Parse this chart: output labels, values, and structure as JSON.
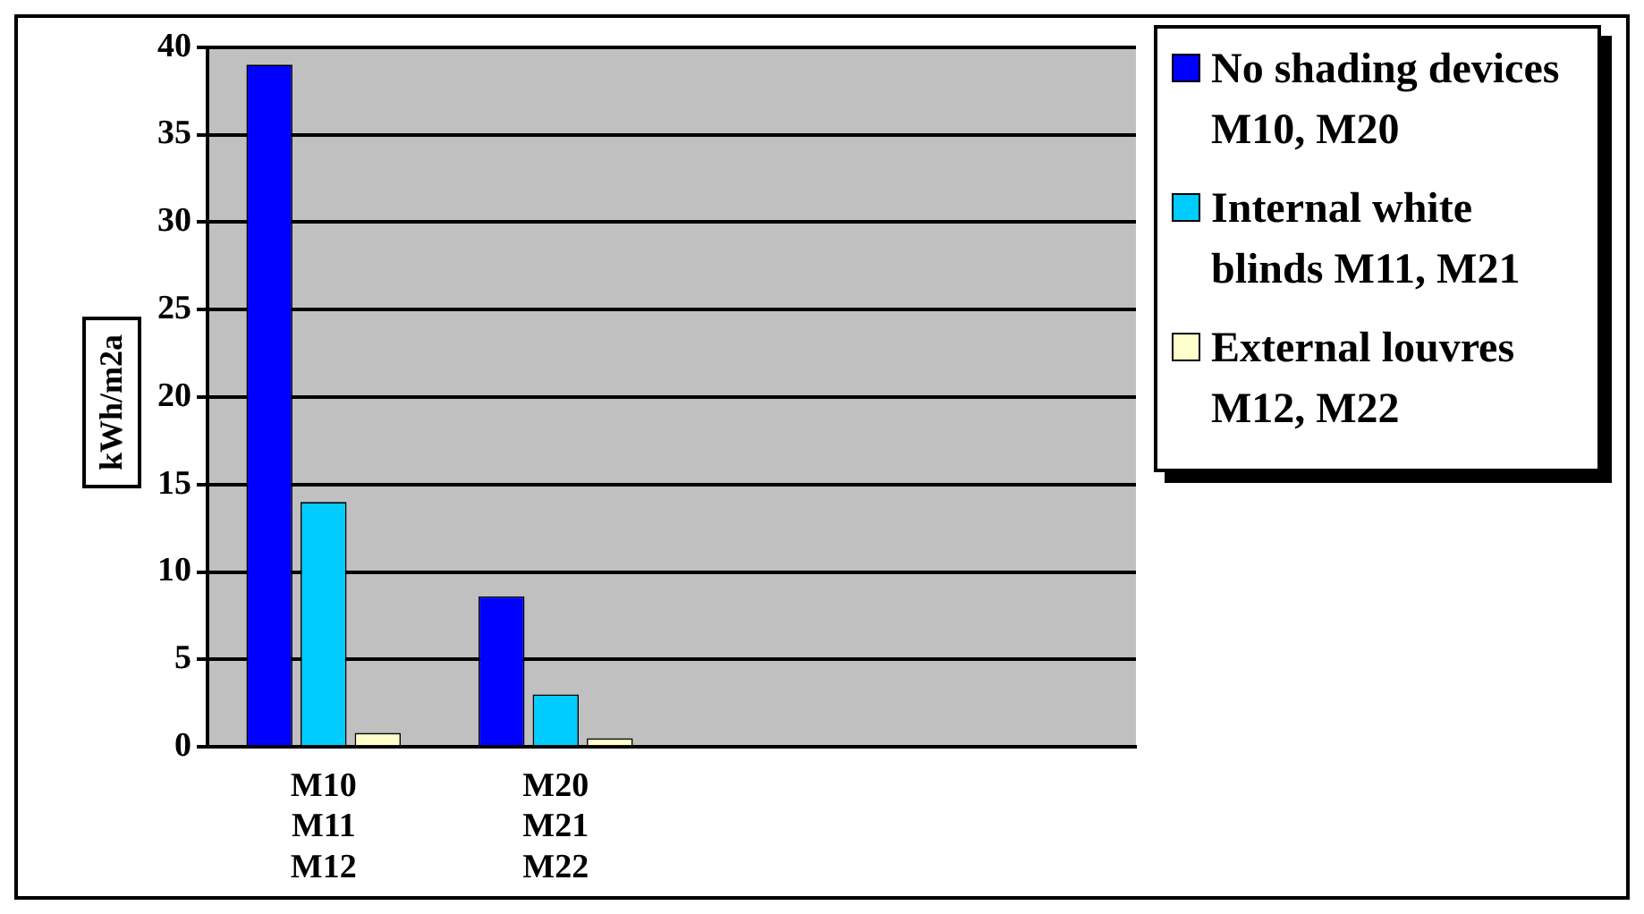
{
  "chart_data": {
    "type": "bar",
    "ylabel": "kWh/m2a",
    "categories": [
      "M10 M11 M12",
      "M20 M21 M22",
      null,
      null
    ],
    "series": [
      {
        "name": "No shading devices M10, M20",
        "color": "#0000ff",
        "values": [
          39,
          8.6,
          null,
          null
        ]
      },
      {
        "name": "Internal white blinds M11, M21",
        "color": "#00ccff",
        "values": [
          14,
          3,
          null,
          null
        ]
      },
      {
        "name": "External louvres M12, M22",
        "color": "#ffffcc",
        "values": [
          0.8,
          0.5,
          null,
          null
        ]
      }
    ],
    "ylim": [
      0,
      40
    ],
    "yticks": [
      0,
      5,
      10,
      15,
      20,
      25,
      30,
      35,
      40
    ],
    "grid": "y",
    "legend": "right"
  }
}
